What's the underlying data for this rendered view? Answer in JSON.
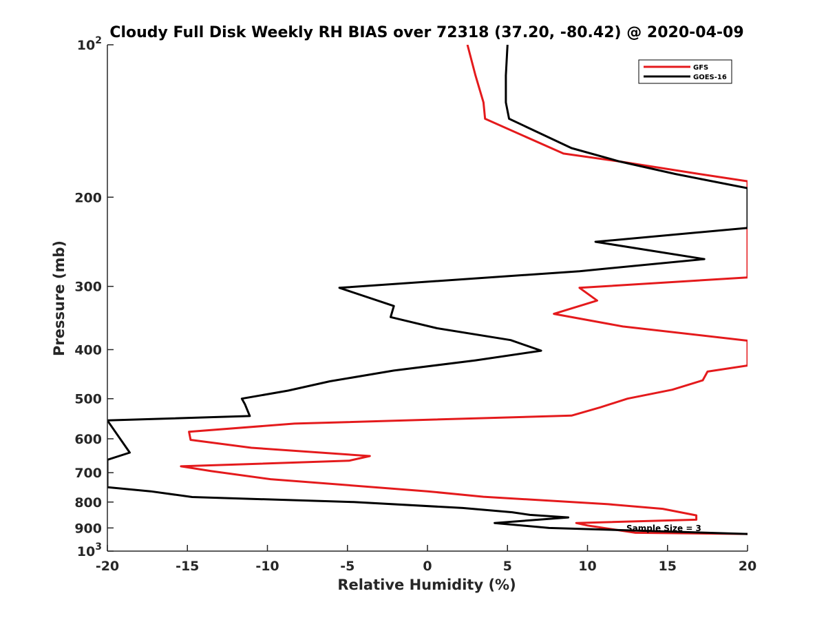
{
  "chart_data": {
    "type": "line",
    "title": "Cloudy Full Disk Weekly RH BIAS over 72318 (37.20, -80.42) @ 2020-04-09",
    "xlabel": "Relative Humidity (%)",
    "ylabel": "Pressure (mb)",
    "xlim": [
      -20,
      20
    ],
    "ylim": [
      100,
      1000
    ],
    "y_scale": "log",
    "y_reversed": true,
    "grid": false,
    "x_ticks": [
      -20,
      -15,
      -10,
      -5,
      0,
      5,
      10,
      15,
      20
    ],
    "x_tick_labels": [
      "-20",
      "-15",
      "-10",
      "-5",
      "0",
      "5",
      "10",
      "15",
      "20"
    ],
    "y_ticks": [
      100,
      200,
      300,
      400,
      500,
      600,
      700,
      800,
      900,
      1000
    ],
    "y_tick_labels": [
      {
        "base": "10",
        "sup": "2"
      },
      {
        "base": "200",
        "sup": ""
      },
      {
        "base": "300",
        "sup": ""
      },
      {
        "base": "400",
        "sup": ""
      },
      {
        "base": "500",
        "sup": ""
      },
      {
        "base": "600",
        "sup": ""
      },
      {
        "base": "700",
        "sup": ""
      },
      {
        "base": "800",
        "sup": ""
      },
      {
        "base": "900",
        "sup": ""
      },
      {
        "base": "10",
        "sup": "3"
      }
    ],
    "legend_position": "top-right",
    "annotation": "Sample Size = 3",
    "series": [
      {
        "name": "GFS",
        "color": "#e41a1c",
        "points": [
          [
            2.5,
            100
          ],
          [
            3.0,
            115
          ],
          [
            3.5,
            130
          ],
          [
            3.6,
            140
          ],
          [
            8.5,
            164
          ],
          [
            12.0,
            170
          ],
          [
            17.0,
            180
          ],
          [
            20.0,
            186
          ],
          [
            20.0,
            288
          ],
          [
            9.5,
            302
          ],
          [
            10.6,
            320
          ],
          [
            7.9,
            340
          ],
          [
            12.2,
            360
          ],
          [
            20.0,
            384
          ],
          [
            20.0,
            430
          ],
          [
            17.5,
            442
          ],
          [
            17.2,
            460
          ],
          [
            15.3,
            480
          ],
          [
            12.5,
            500
          ],
          [
            10.8,
            520
          ],
          [
            9.0,
            540
          ],
          [
            -8.3,
            560
          ],
          [
            -14.9,
            581
          ],
          [
            -14.8,
            603
          ],
          [
            -11.0,
            625
          ],
          [
            -3.6,
            649
          ],
          [
            -4.9,
            663
          ],
          [
            -15.4,
            680
          ],
          [
            -13.5,
            695
          ],
          [
            -9.8,
            721
          ],
          [
            0.0,
            762
          ],
          [
            3.5,
            781
          ],
          [
            11.3,
            808
          ],
          [
            14.7,
            825
          ],
          [
            16.8,
            850
          ],
          [
            16.8,
            867
          ],
          [
            9.3,
            880
          ],
          [
            10.0,
            890
          ],
          [
            11.5,
            905
          ],
          [
            13.0,
            920
          ],
          [
            20.0,
            925
          ]
        ]
      },
      {
        "name": "GOES-16",
        "color": "#000000",
        "points": [
          [
            5.0,
            100
          ],
          [
            4.9,
            115
          ],
          [
            4.9,
            130
          ],
          [
            5.1,
            140
          ],
          [
            9.0,
            160
          ],
          [
            12.0,
            170
          ],
          [
            15.5,
            180
          ],
          [
            20.0,
            192
          ],
          [
            20.0,
            230
          ],
          [
            10.5,
            245
          ],
          [
            17.3,
            265
          ],
          [
            9.5,
            280
          ],
          [
            -5.5,
            302
          ],
          [
            -2.1,
            328
          ],
          [
            -2.3,
            345
          ],
          [
            0.6,
            363
          ],
          [
            5.2,
            383
          ],
          [
            7.1,
            402
          ],
          [
            3.0,
            420
          ],
          [
            -2.1,
            440
          ],
          [
            -6.1,
            462
          ],
          [
            -8.7,
            482
          ],
          [
            -11.6,
            500
          ],
          [
            -11.4,
            513
          ],
          [
            -11.1,
            541
          ],
          [
            -20.0,
            552
          ],
          [
            -18.6,
            639
          ],
          [
            -20.0,
            660
          ],
          [
            -20.0,
            748
          ],
          [
            -17.3,
            762
          ],
          [
            -14.7,
            782
          ],
          [
            -4.6,
            800
          ],
          [
            2.2,
            822
          ],
          [
            5.3,
            838
          ],
          [
            6.4,
            848
          ],
          [
            8.8,
            858
          ],
          [
            4.2,
            880
          ],
          [
            7.6,
            900
          ],
          [
            20.0,
            925
          ]
        ]
      }
    ]
  }
}
